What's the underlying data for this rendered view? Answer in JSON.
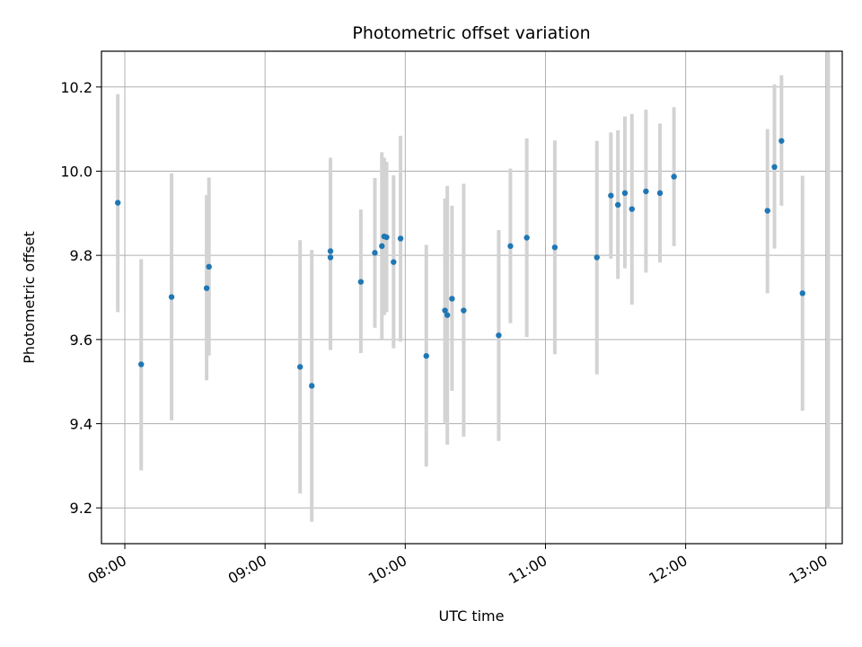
{
  "chart_data": {
    "type": "scatter",
    "title": "Photometric offset variation",
    "xlabel": "UTC time",
    "ylabel": "Photometric offset",
    "xlim": [
      "07:50",
      "13:07"
    ],
    "ylim": [
      9.115,
      10.285
    ],
    "x_ticks": [
      "08:00",
      "09:00",
      "10:00",
      "11:00",
      "12:00",
      "13:00"
    ],
    "y_ticks": [
      "9.2",
      "9.4",
      "9.6",
      "9.8",
      "10.0",
      "10.2"
    ],
    "grid": true,
    "point_color": "#1f77b4",
    "errorbar_color": "#d3d3d3",
    "points": [
      {
        "time": "07:57",
        "value": 9.925,
        "low": 9.665,
        "high": 10.183
      },
      {
        "time": "08:07",
        "value": 9.541,
        "low": 9.289,
        "high": 9.791
      },
      {
        "time": "08:20",
        "value": 9.701,
        "low": 9.408,
        "high": 9.995
      },
      {
        "time": "08:35",
        "value": 9.722,
        "low": 9.503,
        "high": 9.943
      },
      {
        "time": "08:36",
        "value": 9.773,
        "low": 9.562,
        "high": 9.985
      },
      {
        "time": "09:15",
        "value": 9.535,
        "low": 9.234,
        "high": 9.836
      },
      {
        "time": "09:20",
        "value": 9.49,
        "low": 9.167,
        "high": 9.813
      },
      {
        "time": "09:28",
        "value": 9.81,
        "low": 9.588,
        "high": 10.032
      },
      {
        "time": "09:28",
        "value": 9.795,
        "low": 9.575,
        "high": 10.015
      },
      {
        "time": "09:41",
        "value": 9.737,
        "low": 9.568,
        "high": 9.909
      },
      {
        "time": "09:47",
        "value": 9.806,
        "low": 9.628,
        "high": 9.984
      },
      {
        "time": "09:50",
        "value": 9.822,
        "low": 9.6,
        "high": 10.045
      },
      {
        "time": "09:51",
        "value": 9.845,
        "low": 9.658,
        "high": 10.032
      },
      {
        "time": "09:52",
        "value": 9.843,
        "low": 9.665,
        "high": 10.022
      },
      {
        "time": "09:55",
        "value": 9.784,
        "low": 9.579,
        "high": 9.99
      },
      {
        "time": "09:58",
        "value": 9.84,
        "low": 9.595,
        "high": 10.084
      },
      {
        "time": "10:09",
        "value": 9.561,
        "low": 9.298,
        "high": 9.825
      },
      {
        "time": "10:17",
        "value": 9.669,
        "low": 9.402,
        "high": 9.935
      },
      {
        "time": "10:18",
        "value": 9.658,
        "low": 9.35,
        "high": 9.965
      },
      {
        "time": "10:20",
        "value": 9.697,
        "low": 9.478,
        "high": 9.918
      },
      {
        "time": "10:25",
        "value": 9.669,
        "low": 9.369,
        "high": 9.97
      },
      {
        "time": "10:40",
        "value": 9.61,
        "low": 9.359,
        "high": 9.86
      },
      {
        "time": "10:45",
        "value": 9.822,
        "low": 9.639,
        "high": 10.006
      },
      {
        "time": "10:52",
        "value": 9.842,
        "low": 9.606,
        "high": 10.078
      },
      {
        "time": "11:04",
        "value": 9.819,
        "low": 9.565,
        "high": 10.073
      },
      {
        "time": "11:22",
        "value": 9.795,
        "low": 9.517,
        "high": 10.072
      },
      {
        "time": "11:28",
        "value": 9.942,
        "low": 9.792,
        "high": 10.092
      },
      {
        "time": "11:31",
        "value": 9.92,
        "low": 9.744,
        "high": 10.097
      },
      {
        "time": "11:34",
        "value": 9.948,
        "low": 9.769,
        "high": 10.13
      },
      {
        "time": "11:37",
        "value": 9.91,
        "low": 9.683,
        "high": 10.136
      },
      {
        "time": "11:43",
        "value": 9.952,
        "low": 9.759,
        "high": 10.146
      },
      {
        "time": "11:49",
        "value": 9.948,
        "low": 9.783,
        "high": 10.113
      },
      {
        "time": "11:55",
        "value": 9.987,
        "low": 9.822,
        "high": 10.152
      },
      {
        "time": "12:35",
        "value": 9.906,
        "low": 9.71,
        "high": 10.1
      },
      {
        "time": "12:38",
        "value": 10.01,
        "low": 9.816,
        "high": 10.206
      },
      {
        "time": "12:41",
        "value": 10.072,
        "low": 9.918,
        "high": 10.228
      },
      {
        "time": "12:50",
        "value": 9.71,
        "low": 9.431,
        "high": 9.989
      },
      {
        "time": "13:01",
        "value": null,
        "low": 9.2,
        "high": 10.285
      }
    ]
  }
}
